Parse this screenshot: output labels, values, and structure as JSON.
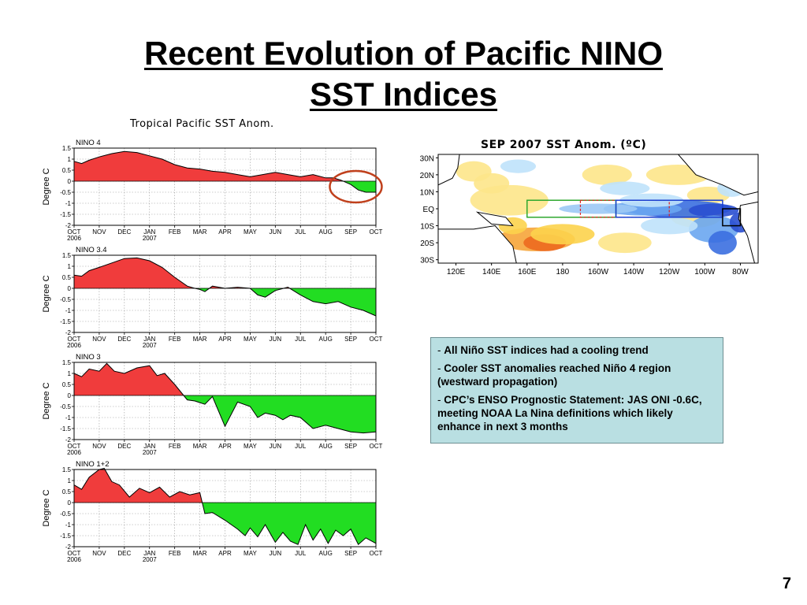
{
  "slide": {
    "title_line1": "Recent Evolution of Pacific NINO",
    "title_line2": "SST Indices",
    "panel_title": "Tropical Pacific SST Anom.",
    "page_number": "7"
  },
  "notes": [
    "All Niño SST indices had a cooling trend",
    "Cooler SST anomalies reached Niño 4 region (westward propagation)",
    "CPC’s ENSO Prognostic Statement: JAS ONI -0.6C, meeting NOAA La Nina definitions which likely enhance in next 3 months"
  ],
  "colors": {
    "positive": "#f03c3c",
    "negative": "#22dd22",
    "highlight_circle": "#c0401c",
    "notes_bg": "#b9dfe2"
  },
  "chart_data": [
    {
      "type": "area",
      "title": "NINO 4",
      "ylabel": "Degree C",
      "ylim": [
        -2,
        1.5
      ],
      "yticks": [
        "1.5",
        "1",
        "0.5",
        "0",
        "-0.5",
        "-1",
        "-1.5",
        "-2"
      ],
      "xticks": [
        "OCT 2006",
        "NOV",
        "DEC",
        "JAN 2007",
        "FEB",
        "MAR",
        "APR",
        "MAY",
        "JUN",
        "JUL",
        "AUG",
        "SEP",
        "OCT"
      ],
      "grid": true,
      "annotation": "circle around SEP–OCT",
      "x": [
        0,
        0.3,
        0.6,
        1,
        1.5,
        2,
        2.5,
        3,
        3.5,
        4,
        4.5,
        5,
        5.5,
        6,
        6.5,
        7,
        7.5,
        8,
        8.5,
        9,
        9.5,
        10,
        10.3,
        10.6,
        11,
        11.3,
        11.6,
        12
      ],
      "values": [
        0.9,
        0.8,
        0.95,
        1.1,
        1.25,
        1.35,
        1.3,
        1.15,
        1.0,
        0.75,
        0.6,
        0.55,
        0.45,
        0.4,
        0.3,
        0.2,
        0.3,
        0.4,
        0.3,
        0.2,
        0.3,
        0.15,
        0.15,
        0.05,
        -0.15,
        -0.4,
        -0.5,
        -0.5
      ]
    },
    {
      "type": "area",
      "title": "NINO 3.4",
      "ylabel": "Degree C",
      "ylim": [
        -2,
        1.5
      ],
      "yticks": [
        "1.5",
        "1",
        "0.5",
        "0",
        "-0.5",
        "-1",
        "-1.5",
        "-2"
      ],
      "xticks": [
        "OCT 2006",
        "NOV",
        "DEC",
        "JAN 2007",
        "FEB",
        "MAR",
        "APR",
        "MAY",
        "JUN",
        "JUL",
        "AUG",
        "SEP",
        "OCT"
      ],
      "grid": true,
      "x": [
        0,
        0.3,
        0.6,
        1,
        1.5,
        2,
        2.5,
        3,
        3.5,
        4,
        4.5,
        4.8,
        5,
        5.2,
        5.5,
        6,
        6.5,
        7,
        7.3,
        7.6,
        8,
        8.5,
        9,
        9.5,
        10,
        10.5,
        11,
        11.5,
        12
      ],
      "values": [
        0.6,
        0.55,
        0.8,
        0.95,
        1.15,
        1.35,
        1.38,
        1.25,
        0.95,
        0.5,
        0.1,
        0.0,
        -0.05,
        -0.15,
        0.1,
        0.0,
        0.05,
        0.0,
        -0.3,
        -0.4,
        -0.1,
        0.05,
        -0.3,
        -0.6,
        -0.7,
        -0.6,
        -0.85,
        -1.0,
        -1.25
      ]
    },
    {
      "type": "area",
      "title": "NINO 3",
      "ylabel": "Degree C",
      "ylim": [
        -2,
        1.5
      ],
      "yticks": [
        "1.5",
        "1",
        "0.5",
        "0",
        "-0.5",
        "-1",
        "-1.5",
        "-2"
      ],
      "xticks": [
        "OCT 2006",
        "NOV",
        "DEC",
        "JAN 2007",
        "FEB",
        "MAR",
        "APR",
        "MAY",
        "JUN",
        "JUL",
        "AUG",
        "SEP",
        "OCT"
      ],
      "grid": true,
      "x": [
        0,
        0.3,
        0.6,
        1,
        1.3,
        1.6,
        2,
        2.5,
        3,
        3.3,
        3.6,
        4,
        4.5,
        4.8,
        5.2,
        5.5,
        6,
        6.5,
        7,
        7.3,
        7.6,
        8,
        8.3,
        8.6,
        9,
        9.5,
        10,
        10.5,
        11,
        11.5,
        12
      ],
      "values": [
        1.0,
        0.85,
        1.2,
        1.1,
        1.45,
        1.1,
        1.0,
        1.25,
        1.35,
        0.9,
        1.0,
        0.5,
        -0.2,
        -0.25,
        -0.4,
        -0.05,
        -1.4,
        -0.3,
        -0.5,
        -1.0,
        -0.8,
        -0.9,
        -1.1,
        -0.9,
        -1.0,
        -1.5,
        -1.35,
        -1.5,
        -1.65,
        -1.7,
        -1.65
      ]
    },
    {
      "type": "area",
      "title": "NINO 1+2",
      "ylabel": "Degree C",
      "ylim": [
        -2,
        1.5
      ],
      "yticks": [
        "1.5",
        "1",
        "0.5",
        "0",
        "-0.5",
        "-1",
        "-1.5",
        "-2"
      ],
      "xticks": [
        "OCT 2006",
        "NOV",
        "DEC",
        "JAN 2007",
        "FEB",
        "MAR",
        "APR",
        "MAY",
        "JUN",
        "JUL",
        "AUG",
        "SEP",
        "OCT"
      ],
      "grid": true,
      "x": [
        0,
        0.3,
        0.6,
        1,
        1.2,
        1.5,
        1.8,
        2.2,
        2.6,
        3,
        3.4,
        3.8,
        4.2,
        4.6,
        5,
        5.2,
        5.5,
        6,
        6.5,
        6.8,
        7,
        7.3,
        7.6,
        8,
        8.3,
        8.6,
        8.9,
        9.2,
        9.5,
        9.8,
        10.1,
        10.4,
        10.7,
        11,
        11.3,
        11.6,
        12
      ],
      "values": [
        0.8,
        0.6,
        1.15,
        1.5,
        1.55,
        0.95,
        0.8,
        0.25,
        0.65,
        0.45,
        0.7,
        0.25,
        0.5,
        0.35,
        0.45,
        -0.5,
        -0.45,
        -0.8,
        -1.2,
        -1.5,
        -1.15,
        -1.55,
        -1.0,
        -1.8,
        -1.35,
        -1.75,
        -1.9,
        -1.0,
        -1.7,
        -1.2,
        -1.85,
        -1.25,
        -1.5,
        -1.2,
        -1.9,
        -1.6,
        -1.85
      ]
    },
    {
      "type": "heatmap",
      "title": "SEP  2007  SST  Anom.  (ºC)",
      "xticks": [
        "120E",
        "140E",
        "160E",
        "180",
        "160W",
        "140W",
        "120W",
        "100W",
        "80W"
      ],
      "yticks": [
        "30N",
        "20N",
        "10N",
        "EQ",
        "10S",
        "20S",
        "30S"
      ],
      "boxes": [
        "Niño 4",
        "Niño 3.4",
        "Niño 3",
        "Niño 1+2"
      ]
    }
  ]
}
